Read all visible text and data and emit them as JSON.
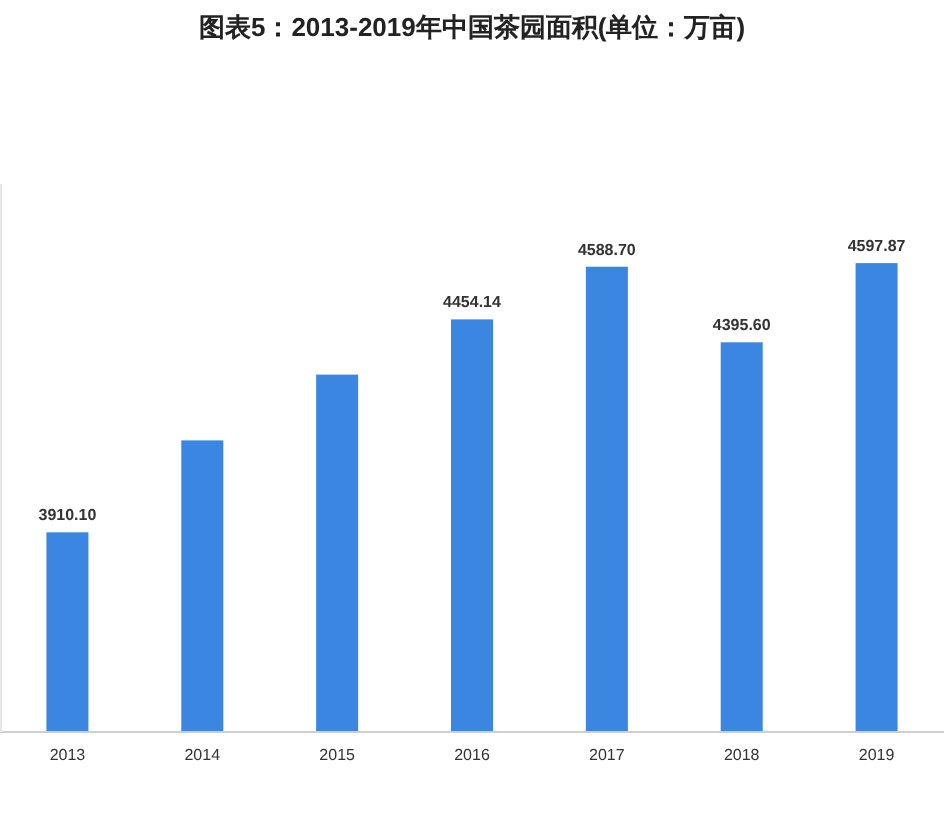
{
  "chart_data": {
    "type": "bar",
    "title": "图表5：2013-2019年中国茶园面积(单位：万亩)",
    "categories": [
      "2013",
      "2014",
      "2015",
      "2016",
      "2017",
      "2018",
      "2019"
    ],
    "values": [
      3910.1,
      4145,
      4313,
      4454.14,
      4588.7,
      4395.6,
      4597.87
    ],
    "value_labels": [
      "3910.10",
      null,
      null,
      "4454.14",
      "4588.70",
      "4395.60",
      "4597.87"
    ],
    "color": "#3b86e0",
    "ylim": [
      3400,
      4800
    ],
    "grid": false,
    "legend": false
  }
}
